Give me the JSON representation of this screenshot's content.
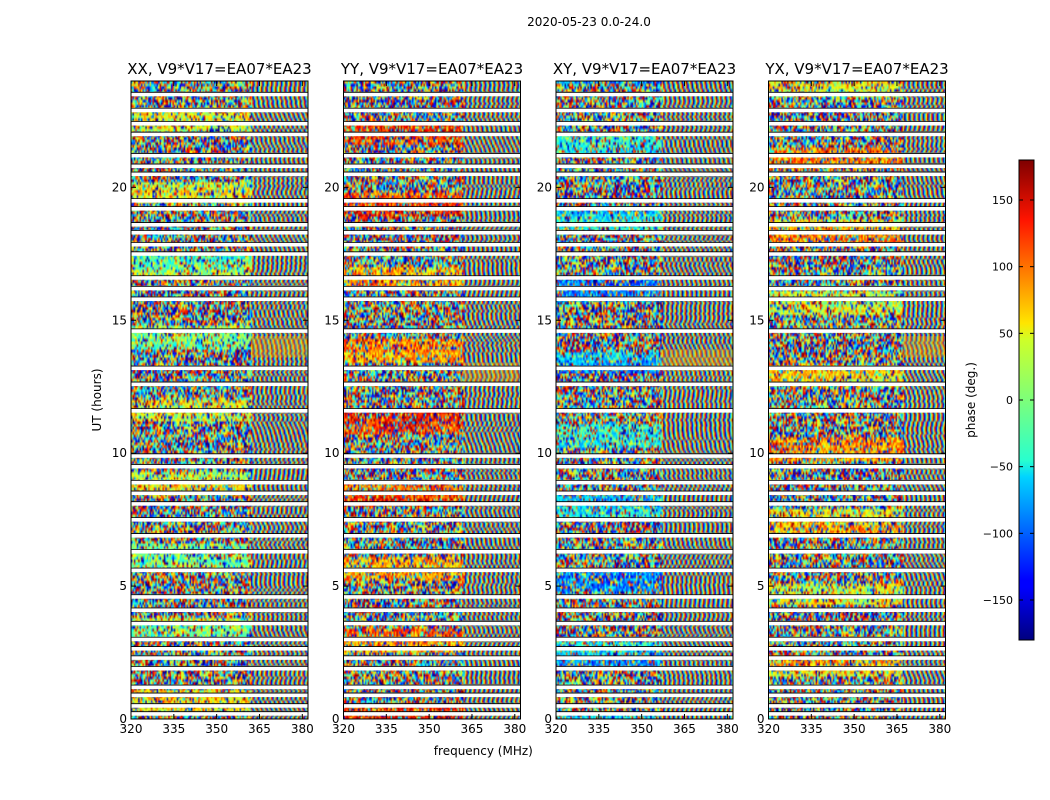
{
  "figure": {
    "suptitle": "2020-05-23 0.0-24.0",
    "xlabel": "frequency (MHz)",
    "ylabel": "UT (hours)",
    "colorbar": {
      "label": "phase (deg.)",
      "ticks": [
        150,
        100,
        50,
        0,
        -50,
        -100,
        -150
      ],
      "tick_labels": [
        "150",
        "100",
        "50",
        "0",
        "−50",
        "−100",
        "−150"
      ],
      "range": [
        -180,
        180
      ],
      "colormap": "jet"
    }
  },
  "chart_data": {
    "type": "heatmap",
    "x_unit": "MHz",
    "y_unit": "hours",
    "xlim": [
      320,
      382
    ],
    "ylim": [
      0,
      24
    ],
    "x_ticks": [
      320,
      335,
      350,
      365,
      380
    ],
    "x_tick_labels": [
      "320",
      "335",
      "350",
      "365",
      "380"
    ],
    "y_ticks": [
      0,
      5,
      10,
      15,
      20
    ],
    "y_tick_labels": [
      "0",
      "5",
      "10",
      "15",
      "20"
    ],
    "z_label": "phase (deg.)",
    "z_range": [
      -180,
      180
    ],
    "gap_rows_hours": [
      0.2,
      0.5,
      0.9,
      1.2,
      1.9,
      2.3,
      2.65,
      3.0,
      3.6,
      4.1,
      4.6,
      5.6,
      6.3,
      6.9,
      7.5,
      8.1,
      8.5,
      8.9,
      9.5,
      9.9,
      11.6,
      12.6,
      13.2,
      14.6,
      15.8,
      16.2,
      16.6,
      17.5,
      17.85,
      18.3,
      18.6,
      19.2,
      19.5,
      20.5,
      20.8,
      21.2,
      22.0,
      22.4,
      22.9,
      23.5
    ],
    "panels": [
      {
        "title": "XX, V9*V17=EA07*EA23",
        "polarization": "XX",
        "show_xlabel": false,
        "fringe_start_mhz": 362,
        "stripe_hours": [
          14.0
        ],
        "base_phase": 20
      },
      {
        "title": "YY, V9*V17=EA07*EA23",
        "polarization": "YY",
        "show_xlabel": true,
        "fringe_start_mhz": 362,
        "stripe_hours": [
          13.0
        ],
        "base_phase": 100
      },
      {
        "title": "XY, V9*V17=EA07*EA23",
        "polarization": "XY",
        "show_xlabel": false,
        "fringe_start_mhz": 357,
        "stripe_hours": [
          13.5
        ],
        "base_phase": -60
      },
      {
        "title": "YX, V9*V17=EA07*EA23",
        "polarization": "YX",
        "show_xlabel": false,
        "fringe_start_mhz": 367,
        "stripe_hours": [
          14.0
        ],
        "base_phase": 60
      }
    ]
  }
}
